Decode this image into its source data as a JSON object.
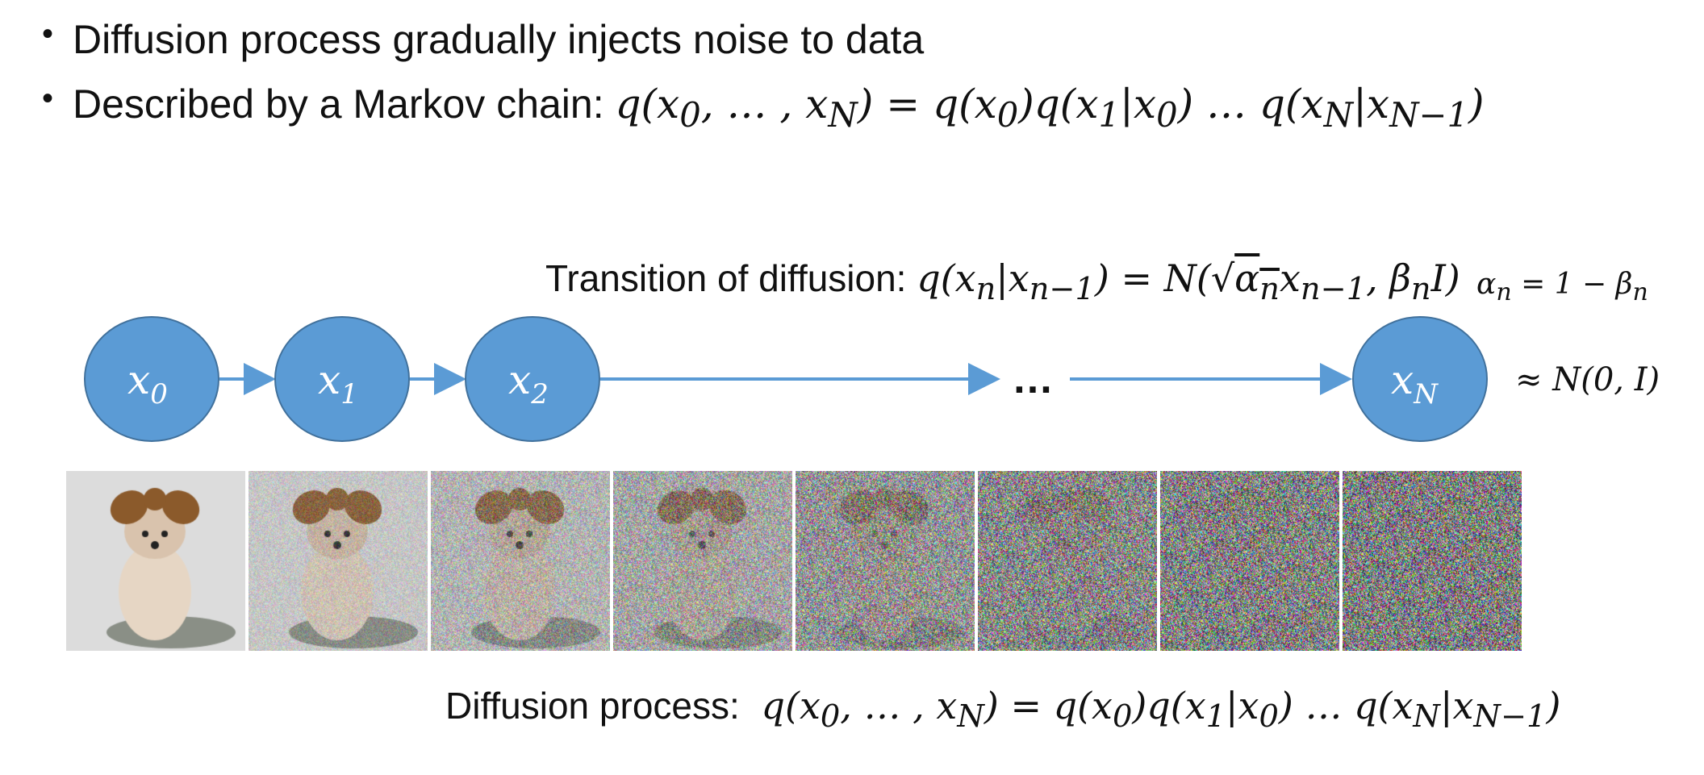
{
  "bullets": [
    {
      "text": "Diffusion process gradually injects noise to data"
    },
    {
      "prefix": "Described by a Markov chain: ",
      "formula": "q(x₀, … , x_N) = q(x₀)q(x₁|x₀) … q(x_N|x_{N−1})"
    }
  ],
  "transition": {
    "label": "Transition of diffusion: ",
    "formula": "q(x_n|x_{n−1}) = N(√α_n x_{n−1}, β_n I)",
    "alpha_def": "α_n = 1 − β_n"
  },
  "nodes": [
    "x0",
    "x1",
    "x2",
    "xN"
  ],
  "ellipsis": "…",
  "limit": "≈ N(0, I)",
  "noise_levels": [
    0.0,
    0.25,
    0.45,
    0.6,
    0.78,
    0.9,
    0.96,
    1.0
  ],
  "colors": {
    "node_fill": "#5b9bd5",
    "node_stroke": "#41719c",
    "arrow": "#5b9bd5"
  },
  "caption": {
    "label": "Diffusion process:",
    "formula": "q(x₀, … , x_N) = q(x₀)q(x₁|x₀) … q(x_N|x_{N−1})"
  }
}
